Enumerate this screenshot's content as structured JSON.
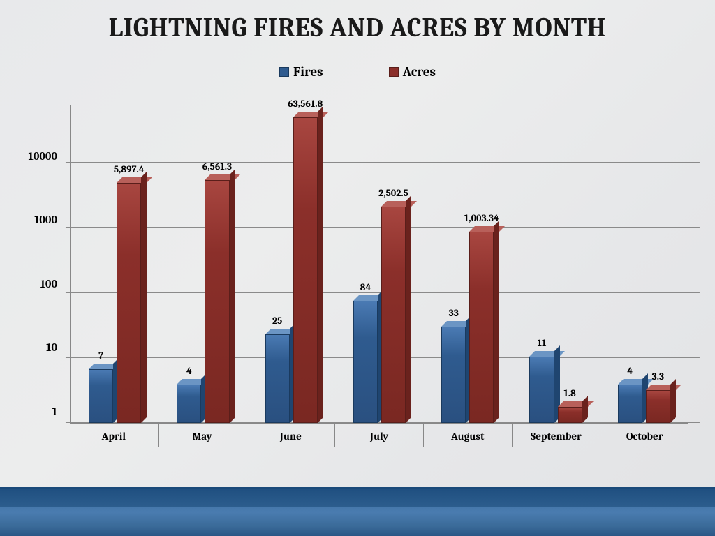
{
  "title": "LIGHTNING FIRES AND ACRES BY MONTH",
  "legend": {
    "fires": "Fires",
    "acres": "Acres"
  },
  "chart": {
    "type": "bar",
    "scale": "log",
    "ylim": [
      1,
      100000
    ],
    "yticks": [
      {
        "value": 1,
        "label": "1"
      },
      {
        "value": 10,
        "label": "10"
      },
      {
        "value": 100,
        "label": "100"
      },
      {
        "value": 1000,
        "label": "1000"
      },
      {
        "value": 10000,
        "label": "10000"
      }
    ],
    "categories": [
      "April",
      "May",
      "June",
      "July",
      "August",
      "September",
      "October"
    ],
    "series": {
      "fires": {
        "color": "#2f5b8f",
        "values": [
          7,
          4,
          25,
          84,
          33,
          11,
          4
        ],
        "labels": [
          "7",
          "4",
          "25",
          "84",
          "33",
          "11",
          "4"
        ]
      },
      "acres": {
        "color": "#8b2f2a",
        "values": [
          5897.4,
          6561.3,
          63561.8,
          2502.5,
          1003.34,
          1.8,
          3.3
        ],
        "labels": [
          "5,897.4",
          "6,561.3",
          "63,561.8",
          "2,502.5",
          "1,003.34",
          "1.8",
          "3.3"
        ]
      }
    },
    "bar_width_pct": 28,
    "gap_pct": 4,
    "background_color": "#e8e9eb",
    "grid_color": "#8a8a8a",
    "title_fontsize": 38,
    "label_fontsize": 15,
    "ytick_fontsize": 16,
    "datalabel_fontsize": 14
  }
}
